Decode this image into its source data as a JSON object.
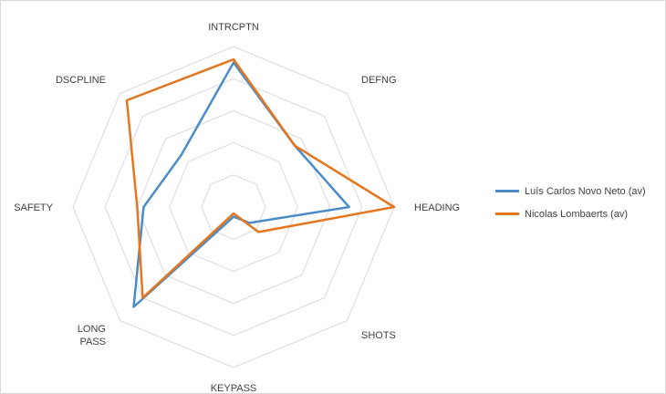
{
  "chart_data": {
    "type": "radar",
    "axes": [
      "INTRCPTN",
      "DEFNG",
      "HEADING",
      "SHOTS",
      "KEYPASS",
      "LONG PASS",
      "SAFETY",
      "DSCPLINE"
    ],
    "axis_label_lines": [
      [
        "INTRCPTN"
      ],
      [
        "DEFNG"
      ],
      [
        "HEADING"
      ],
      [
        "SHOTS"
      ],
      [
        "KEYPASS"
      ],
      [
        "LONG",
        "PASS"
      ],
      [
        "SAFETY"
      ],
      [
        "DSCPLINE"
      ]
    ],
    "rlim": [
      0,
      5
    ],
    "rings": 5,
    "grid": true,
    "legend_position": "right",
    "series": [
      {
        "name": "Luís Carlos Novo Neto (av)",
        "color": "#4a8cc7",
        "values": [
          4.5,
          2.7,
          3.6,
          0.7,
          0.3,
          4.4,
          2.8,
          2.3
        ]
      },
      {
        "name": "Nicolas Lombaerts (av)",
        "color": "#e3761f",
        "values": [
          4.6,
          2.7,
          5.0,
          1.1,
          0.2,
          4.0,
          3.0,
          4.7
        ]
      }
    ]
  }
}
